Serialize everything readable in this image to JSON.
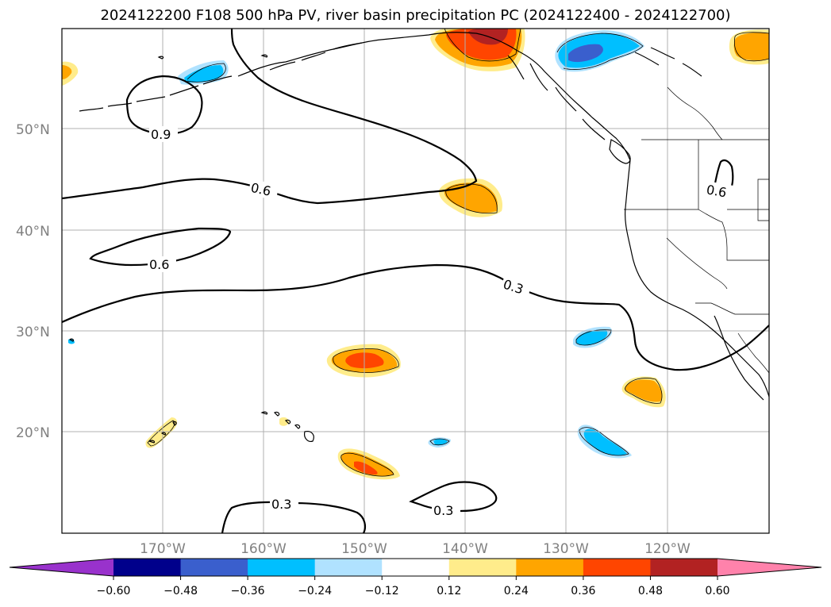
{
  "title": "2024122200 F108 500 hPa PV, river basin precipitation PC (2024122400 - 2024122700)",
  "map": {
    "lat_labels": [
      "50°N",
      "40°N",
      "30°N",
      "20°N"
    ],
    "lon_labels": [
      "170°W",
      "160°W",
      "150°W",
      "140°W",
      "130°W",
      "120°W"
    ]
  },
  "contour_labels": [
    "0.9",
    "0.6",
    "0.6",
    "0.6",
    "0.3",
    "0.3",
    "0.3"
  ],
  "colorbar": {
    "ticks": [
      "−0.60",
      "−0.48",
      "−0.36",
      "−0.24",
      "−0.12",
      "0.12",
      "0.24",
      "0.36",
      "0.48",
      "0.60"
    ],
    "colors": [
      "#9932cc",
      "#00008b",
      "#3a5fcd",
      "#00bfff",
      "#b0e2ff",
      "#ffffff",
      "#ffec8b",
      "#ffa500",
      "#ff4500",
      "#b22222",
      "#ff82ab"
    ]
  },
  "palette": {
    "pos1": "#ffec8b",
    "pos2": "#ffa500",
    "pos3": "#ff4500",
    "pos4": "#b22222",
    "neg1": "#b0e2ff",
    "neg2": "#00bfff",
    "neg3": "#3a5fcd"
  }
}
